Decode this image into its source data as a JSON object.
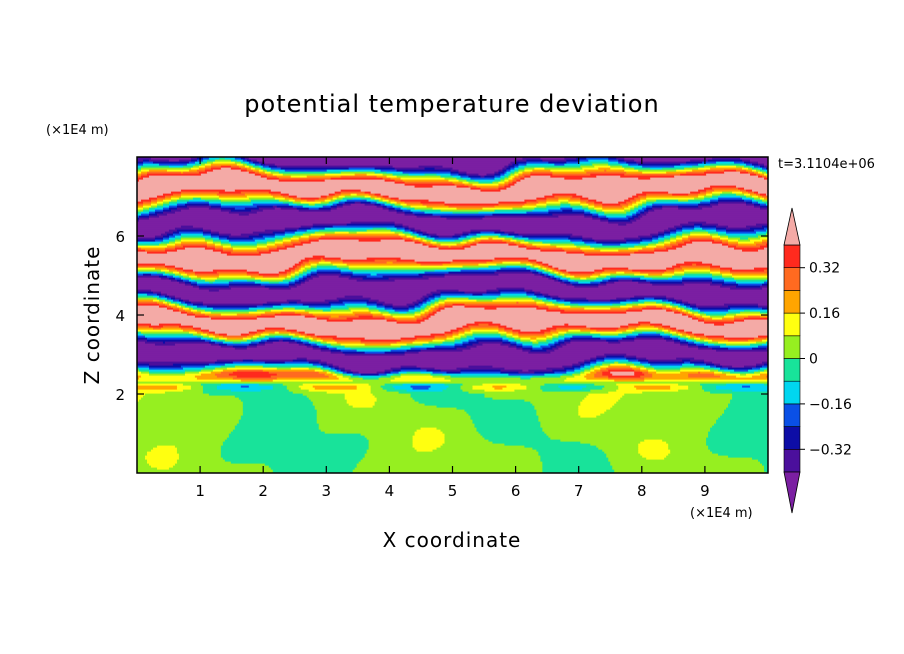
{
  "chart_data": {
    "type": "heatmap",
    "title": "potential temperature deviation",
    "xlabel": "X coordinate",
    "ylabel": "Z coordinate",
    "x_unit": "(×1E4 m)",
    "y_unit": "(×1E4 m)",
    "time_label": "t=3.1104e+06",
    "xlim": [
      0,
      10
    ],
    "ylim": [
      0,
      8
    ],
    "x_ticks": [
      1,
      2,
      3,
      4,
      5,
      6,
      7,
      8,
      9
    ],
    "y_ticks": [
      2,
      4,
      6
    ],
    "colorbar": {
      "levels": [
        -0.4,
        -0.32,
        -0.24,
        -0.16,
        -0.08,
        0,
        0.08,
        0.16,
        0.24,
        0.32,
        0.4
      ],
      "colors": [
        "#7b1fa2",
        "#4b0f9c",
        "#0d0da6",
        "#0a50e6",
        "#00d6f0",
        "#18e39a",
        "#96ef20",
        "#ffff10",
        "#ffa500",
        "#ff6a20",
        "#ff2a1e",
        "#f4aaa6"
      ],
      "tick_labels": [
        "0.32",
        "0.16",
        "0",
        "-0.16",
        "-0.32"
      ],
      "extend": "both"
    },
    "description_of_field": {
      "lower_layer_z_range": [
        0,
        2.3
      ],
      "lower_layer_value_range": [
        -0.08,
        0.08
      ],
      "upper_layer_z_range": [
        2.3,
        8
      ],
      "upper_layer_pattern": "alternating horizontal bands",
      "upper_layer_band_values": [
        -0.4,
        0.4
      ]
    }
  }
}
